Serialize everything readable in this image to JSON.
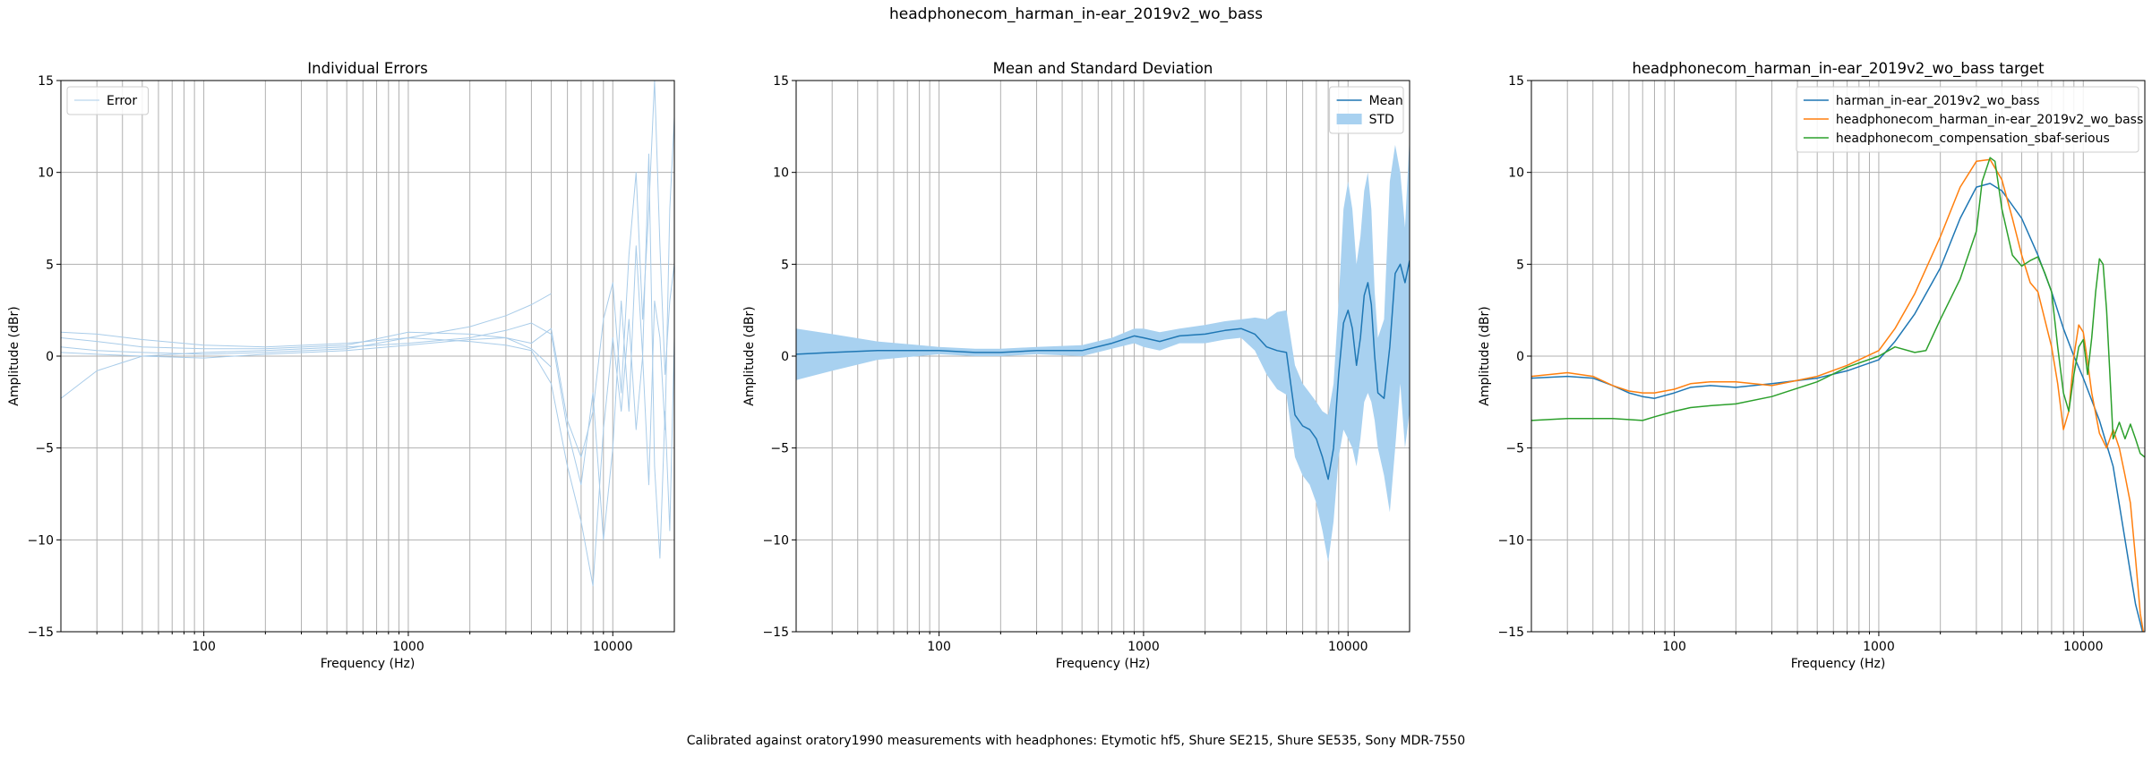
{
  "figure": {
    "suptitle": "headphonecom_harman_in-ear_2019v2_wo_bass",
    "footnote": "Calibrated against oratory1990 measurements with headphones: Etymotic hf5, Shure SE215, Shure SE535, Sony MDR-7550"
  },
  "colors": {
    "c0": "#1f77b4",
    "c1": "#ff7f0e",
    "c2": "#2ca02c",
    "error": "#a9cce9",
    "std": "#a8d1f0",
    "grid": "#b0b0b0"
  },
  "chart_data": [
    {
      "type": "line",
      "title": "Individual Errors",
      "xlabel": "Frequency (Hz)",
      "ylabel": "Amplitude (dBr)",
      "xscale": "log",
      "xlim": [
        20,
        20000
      ],
      "ylim": [
        -15,
        15
      ],
      "xticks": [
        "100",
        "1000",
        "10000"
      ],
      "yticks": [
        "15",
        "10",
        "5",
        "0",
        "−5",
        "−10",
        "−15"
      ],
      "grid": true,
      "legend": {
        "position": "upper-left",
        "entries": [
          "Error"
        ]
      },
      "series": [
        {
          "name": "Error",
          "x": [
            20,
            30,
            50,
            100,
            200,
            500,
            1000,
            2000,
            3000,
            4000,
            5000
          ],
          "y": [
            1.3,
            1.2,
            0.9,
            0.6,
            0.5,
            0.7,
            1.0,
            1.6,
            2.2,
            2.8,
            3.4
          ]
        },
        {
          "name": "",
          "x": [
            20,
            30,
            50,
            100,
            200,
            500,
            1000,
            2000,
            3000,
            4000,
            5000,
            6000,
            7000,
            8000,
            9000,
            10000,
            11000,
            12000,
            13000,
            14000,
            15000,
            16000,
            17000,
            18000,
            19000,
            20000
          ],
          "y": [
            1.0,
            0.8,
            0.5,
            0.4,
            0.4,
            0.6,
            1.3,
            1.2,
            1.0,
            0.7,
            1.5,
            -3.5,
            -5.5,
            -3.0,
            2.0,
            4.0,
            -2.0,
            5.5,
            10.0,
            2.0,
            8.0,
            15.0,
            6.0,
            -1.0,
            3.0,
            5.0
          ]
        },
        {
          "name": "",
          "x": [
            20,
            30,
            50,
            100,
            200,
            500,
            1000,
            2000,
            3000,
            4000,
            5000,
            6000,
            7000,
            8000,
            9000,
            10000,
            11000,
            12000,
            13000,
            14000,
            15000,
            16000,
            17000,
            18000,
            19000,
            20000
          ],
          "y": [
            0.5,
            0.3,
            0.2,
            0.1,
            0.2,
            0.4,
            1.0,
            0.8,
            0.6,
            0.3,
            -1.5,
            -6.0,
            -9.0,
            -12.5,
            -4.0,
            1.0,
            -3.0,
            2.0,
            -4.0,
            0.0,
            11.0,
            -6.0,
            -11.0,
            -3.0,
            -9.5,
            1.0
          ]
        },
        {
          "name": "",
          "x": [
            20,
            30,
            50,
            100,
            200,
            500,
            1000,
            2000,
            3000,
            4000,
            5000,
            6000,
            7000,
            8000,
            9000,
            10000,
            11000,
            12000,
            13000,
            14000,
            15000,
            16000,
            17000,
            18000,
            19000,
            20000
          ],
          "y": [
            -2.3,
            -0.8,
            0.0,
            0.2,
            0.3,
            0.5,
            0.7,
            1.0,
            1.4,
            1.8,
            1.2,
            -4.0,
            -7.0,
            -2.0,
            -10.0,
            -5.0,
            3.0,
            -3.0,
            6.0,
            0.0,
            -7.0,
            3.0,
            1.0,
            -4.0,
            8.0,
            13.0
          ]
        },
        {
          "name": "",
          "x": [
            20,
            30,
            50,
            100,
            200,
            500,
            1000,
            2000,
            3000,
            4000,
            5000
          ],
          "y": [
            0.2,
            0.1,
            0.0,
            -0.1,
            0.1,
            0.3,
            0.6,
            0.9,
            1.0,
            0.4,
            -0.6
          ]
        }
      ]
    },
    {
      "type": "area",
      "title": "Mean and Standard Deviation",
      "xlabel": "Frequency (Hz)",
      "ylabel": "Amplitude (dBr)",
      "xscale": "log",
      "xlim": [
        20,
        20000
      ],
      "ylim": [
        -15,
        15
      ],
      "xticks": [
        "100",
        "1000",
        "10000"
      ],
      "yticks": [
        "15",
        "10",
        "5",
        "0",
        "−5",
        "−10",
        "−15"
      ],
      "grid": true,
      "legend": {
        "position": "upper-right",
        "entries": [
          "Mean",
          "STD"
        ]
      },
      "series": [
        {
          "name": "Mean",
          "x": [
            20,
            30,
            50,
            100,
            150,
            200,
            300,
            500,
            700,
            900,
            1000,
            1200,
            1500,
            2000,
            2500,
            3000,
            3500,
            4000,
            4500,
            5000,
            5500,
            6000,
            6500,
            7000,
            7500,
            8000,
            8500,
            9000,
            9500,
            10000,
            10500,
            11000,
            11500,
            12000,
            12500,
            13000,
            13500,
            14000,
            15000,
            16000,
            17000,
            18000,
            19000,
            20000
          ],
          "y": [
            0.1,
            0.2,
            0.3,
            0.3,
            0.2,
            0.2,
            0.3,
            0.3,
            0.7,
            1.1,
            1.0,
            0.8,
            1.1,
            1.2,
            1.4,
            1.5,
            1.2,
            0.5,
            0.3,
            0.2,
            -3.2,
            -3.8,
            -4.0,
            -4.5,
            -5.5,
            -6.7,
            -5.0,
            -1.0,
            1.8,
            2.5,
            1.5,
            -0.5,
            1.0,
            3.3,
            4.0,
            2.8,
            0.0,
            -2.0,
            -2.3,
            0.5,
            4.5,
            5.0,
            4.0,
            5.2
          ]
        },
        {
          "name": "STD",
          "x": [
            20,
            30,
            50,
            100,
            150,
            200,
            300,
            500,
            700,
            900,
            1000,
            1200,
            1500,
            2000,
            2500,
            3000,
            3500,
            4000,
            4500,
            5000,
            5500,
            6000,
            6500,
            7000,
            7500,
            8000,
            8500,
            9000,
            9500,
            10000,
            10500,
            11000,
            11500,
            12000,
            12500,
            13000,
            13500,
            14000,
            15000,
            16000,
            17000,
            18000,
            19000,
            20000
          ],
          "upper": [
            1.5,
            1.2,
            0.8,
            0.5,
            0.4,
            0.4,
            0.5,
            0.6,
            1.0,
            1.5,
            1.5,
            1.3,
            1.5,
            1.7,
            1.9,
            2.0,
            2.1,
            2.0,
            2.4,
            2.5,
            -0.5,
            -1.5,
            -2.0,
            -2.5,
            -3.0,
            -3.2,
            -1.5,
            3.0,
            8.0,
            9.5,
            8.0,
            5.0,
            6.5,
            9.0,
            10.0,
            8.0,
            3.5,
            1.0,
            2.0,
            9.5,
            11.5,
            10.0,
            7.0,
            12.0
          ],
          "lower": [
            -1.3,
            -0.8,
            -0.2,
            0.1,
            0.0,
            0.0,
            0.1,
            0.0,
            0.4,
            0.7,
            0.5,
            0.3,
            0.7,
            0.7,
            0.9,
            1.0,
            0.3,
            -1.0,
            -1.8,
            -2.1,
            -5.5,
            -6.5,
            -7.0,
            -8.0,
            -9.5,
            -11.2,
            -9.0,
            -5.5,
            -4.0,
            -4.5,
            -5.0,
            -6.0,
            -4.5,
            -2.5,
            -2.0,
            -2.5,
            -3.5,
            -5.0,
            -6.5,
            -8.5,
            -5.0,
            -1.5,
            -5.0,
            -3.0
          ]
        }
      ]
    },
    {
      "type": "line",
      "title": "headphonecom_harman_in-ear_2019v2_wo_bass target",
      "xlabel": "Frequency (Hz)",
      "ylabel": "Amplitude (dBr)",
      "xscale": "log",
      "xlim": [
        20,
        20000
      ],
      "ylim": [
        -15,
        15
      ],
      "xticks": [
        "100",
        "1000",
        "10000"
      ],
      "yticks": [
        "15",
        "10",
        "5",
        "0",
        "−5",
        "−10",
        "−15"
      ],
      "grid": true,
      "legend": {
        "position": "upper-right",
        "entries": [
          "harman_in-ear_2019v2_wo_bass",
          "headphonecom_harman_in-ear_2019v2_wo_bass",
          "headphonecom_compensation_sbaf-serious"
        ]
      },
      "series": [
        {
          "name": "harman_in-ear_2019v2_wo_bass",
          "x": [
            20,
            30,
            40,
            50,
            60,
            70,
            80,
            100,
            120,
            150,
            200,
            300,
            500,
            700,
            1000,
            1200,
            1500,
            2000,
            2500,
            3000,
            3500,
            4000,
            5000,
            6000,
            7000,
            8000,
            9000,
            10000,
            12000,
            14000,
            16000,
            18000,
            20000
          ],
          "y": [
            -1.2,
            -1.1,
            -1.2,
            -1.6,
            -2.0,
            -2.2,
            -2.3,
            -2.0,
            -1.7,
            -1.6,
            -1.7,
            -1.5,
            -1.2,
            -0.8,
            -0.2,
            0.8,
            2.3,
            4.8,
            7.5,
            9.2,
            9.4,
            9.0,
            7.5,
            5.5,
            3.5,
            1.5,
            0.0,
            -1.2,
            -3.5,
            -6.0,
            -10.0,
            -13.5,
            -15.5
          ]
        },
        {
          "name": "headphonecom_harman_in-ear_2019v2_wo_bass",
          "x": [
            20,
            30,
            40,
            50,
            60,
            70,
            80,
            100,
            120,
            150,
            200,
            300,
            500,
            700,
            1000,
            1200,
            1500,
            2000,
            2500,
            3000,
            3500,
            4000,
            4500,
            5000,
            5500,
            6000,
            7000,
            7500,
            8000,
            8500,
            9000,
            9500,
            10000,
            10500,
            11000,
            12000,
            13000,
            14000,
            15000,
            16000,
            17000,
            18000,
            19000,
            20000
          ],
          "y": [
            -1.1,
            -0.9,
            -1.1,
            -1.6,
            -1.9,
            -2.0,
            -2.0,
            -1.8,
            -1.5,
            -1.4,
            -1.4,
            -1.6,
            -1.1,
            -0.5,
            0.3,
            1.5,
            3.4,
            6.5,
            9.2,
            10.6,
            10.7,
            9.6,
            7.5,
            5.5,
            4.0,
            3.5,
            0.5,
            -1.5,
            -4.0,
            -3.0,
            0.0,
            1.7,
            1.3,
            -0.3,
            -2.0,
            -4.2,
            -5.0,
            -4.0,
            -5.0,
            -6.5,
            -8.0,
            -11.0,
            -14.0,
            -15.5
          ]
        },
        {
          "name": "headphonecom_compensation_sbaf-serious",
          "x": [
            20,
            30,
            50,
            70,
            80,
            100,
            120,
            150,
            200,
            300,
            500,
            700,
            1000,
            1200,
            1500,
            1700,
            2000,
            2500,
            3000,
            3200,
            3500,
            3700,
            4000,
            4500,
            5000,
            5500,
            6000,
            6500,
            7000,
            7500,
            8000,
            8500,
            9000,
            9500,
            10000,
            10500,
            11000,
            11500,
            12000,
            12500,
            13000,
            13500,
            14000,
            15000,
            16000,
            17000,
            18000,
            19000,
            20000
          ],
          "y": [
            -3.5,
            -3.4,
            -3.4,
            -3.5,
            -3.3,
            -3.0,
            -2.8,
            -2.7,
            -2.6,
            -2.2,
            -1.4,
            -0.6,
            0.0,
            0.5,
            0.2,
            0.3,
            2.0,
            4.2,
            6.8,
            9.5,
            10.8,
            10.6,
            8.0,
            5.5,
            4.9,
            5.2,
            5.4,
            4.5,
            3.5,
            0.5,
            -2.0,
            -3.0,
            -1.0,
            0.5,
            0.9,
            -1.0,
            1.0,
            3.5,
            5.3,
            5.0,
            2.5,
            -1.0,
            -4.5,
            -3.6,
            -4.5,
            -3.7,
            -4.5,
            -5.3,
            -5.5
          ]
        }
      ]
    }
  ]
}
